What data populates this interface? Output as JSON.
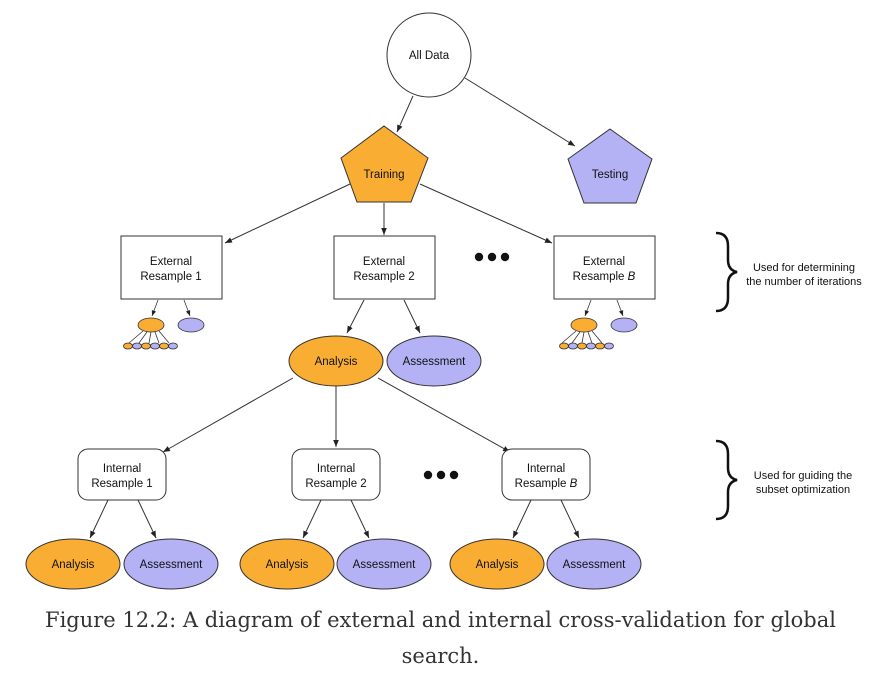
{
  "colors": {
    "analysis": "#f9ae33",
    "assessment": "#b4b1f5",
    "stroke": "#333333"
  },
  "nodes": {
    "all_data": "All Data",
    "training": "Training",
    "testing": "Testing",
    "external_1": [
      "External",
      "Resample 1"
    ],
    "external_2": [
      "External",
      "Resample 2"
    ],
    "external_b": [
      "External",
      "Resample ",
      "B"
    ],
    "analysis": "Analysis",
    "assessment": "Assessment",
    "internal_1": [
      "Internal",
      "Resample 1"
    ],
    "internal_2": [
      "Internal",
      "Resample 2"
    ],
    "internal_b": [
      "Internal",
      "Resample ",
      "B"
    ]
  },
  "notes": {
    "external": [
      "Used for determining",
      "the number of iterations"
    ],
    "internal": [
      "Used for guiding the",
      "subset optimization"
    ]
  },
  "caption": "Figure 12.2: A diagram of external and internal cross-validation for global search."
}
